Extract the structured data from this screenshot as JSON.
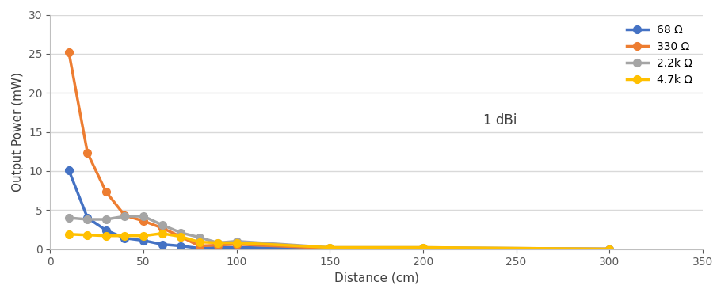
{
  "chart_data": {
    "type": "line",
    "x_label": "Distance (cm)",
    "y_label": "Output Power (mW)",
    "annotations": [
      "1 dBi"
    ],
    "x": [
      10,
      20,
      30,
      40,
      50,
      60,
      70,
      80,
      90,
      100,
      150,
      200,
      300
    ],
    "series": [
      {
        "name": "68 Ω",
        "color": "#4472c4",
        "marker": "o",
        "line_style": "solid",
        "values": [
          10.1,
          4.0,
          2.4,
          1.4,
          1.1,
          0.6,
          0.4,
          0.1,
          0.2,
          0.2,
          0.05,
          0.05,
          0.0
        ]
      },
      {
        "name": "330 Ω",
        "color": "#ed7d31",
        "marker": "o",
        "line_style": "solid",
        "values": [
          25.2,
          12.3,
          7.3,
          4.3,
          3.6,
          2.7,
          1.6,
          0.4,
          0.5,
          0.6,
          0.1,
          0.1,
          0.0
        ]
      },
      {
        "name": "2.2k Ω",
        "color": "#a5a5a5",
        "marker": "o",
        "line_style": "solid",
        "values": [
          4.0,
          3.8,
          3.8,
          4.2,
          4.2,
          3.1,
          2.1,
          1.5,
          0.8,
          1.0,
          0.2,
          0.2,
          0.0
        ]
      },
      {
        "name": "4.7k Ω",
        "color": "#ffc000",
        "marker": "o",
        "line_style": "solid",
        "values": [
          1.9,
          1.8,
          1.7,
          1.7,
          1.7,
          2.0,
          1.6,
          0.9,
          0.8,
          0.8,
          0.2,
          0.2,
          0.0
        ]
      }
    ],
    "xlim": [
      0,
      350
    ],
    "xticks": [
      0,
      50,
      100,
      150,
      200,
      250,
      300,
      350
    ],
    "ylim": [
      0,
      30
    ],
    "yticks": [
      0,
      5,
      10,
      15,
      20,
      25,
      30
    ],
    "grid": true,
    "legend": "upper right"
  }
}
